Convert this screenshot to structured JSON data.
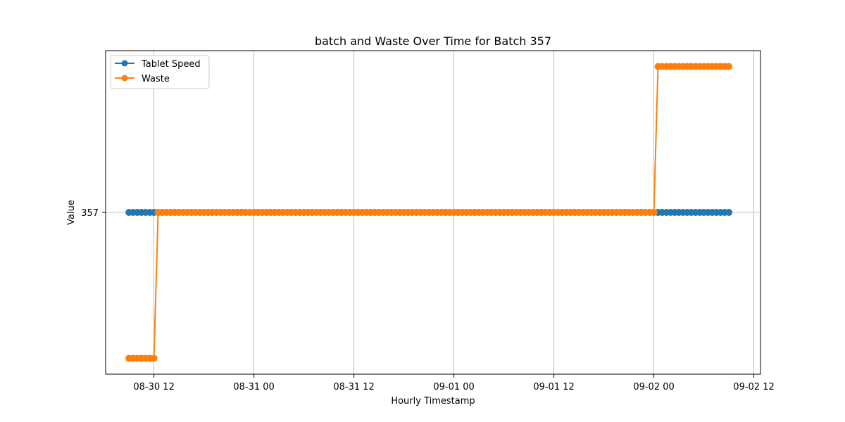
{
  "chart_data": {
    "type": "line",
    "title": "batch and Waste Over Time for Batch 357",
    "xlabel": "Hourly Timestamp",
    "ylabel": "Value",
    "x_ticks": [
      "08-30 12",
      "08-31 00",
      "08-31 12",
      "09-01 00",
      "09-01 12",
      "09-02 00",
      "09-02 12"
    ],
    "x_tick_hours": [
      12,
      24,
      36,
      48,
      60,
      72,
      84
    ],
    "y_ticks": [
      "357"
    ],
    "y_tick_values": [
      357
    ],
    "xlim_hours": [
      6.2,
      84.8
    ],
    "ylim": [
      354.45,
      359.55
    ],
    "grid": true,
    "legend_position": "top-left",
    "series": [
      {
        "name": "Tablet Speed",
        "color": "#1f77b4",
        "x_hours": [
          9.0,
          81.0
        ],
        "segments": [
          {
            "from": 9.0,
            "to": 81.0,
            "value": 357
          }
        ]
      },
      {
        "name": "Waste",
        "color": "#ff7f0e",
        "segments": [
          {
            "from": 9.0,
            "to": 12.0,
            "value": 354.7
          },
          {
            "from": 12.5,
            "to": 72.0,
            "value": 357
          },
          {
            "from": 72.5,
            "to": 81.0,
            "value": 359.3
          }
        ]
      }
    ]
  }
}
